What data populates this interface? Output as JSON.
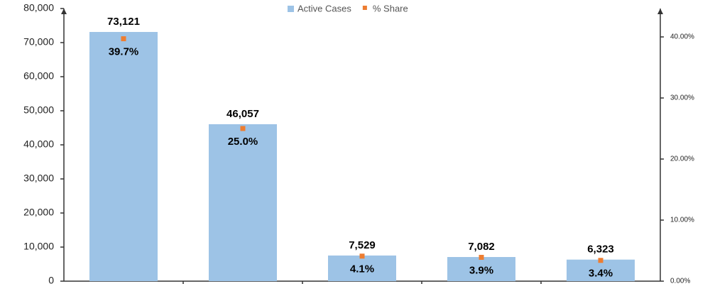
{
  "chart_data": {
    "type": "bar",
    "categories": [
      null,
      null,
      null,
      null,
      null
    ],
    "series": [
      {
        "name": "Active Cases",
        "color": "#9dc3e6",
        "values": [
          73121,
          46057,
          7529,
          7082,
          6323
        ],
        "value_labels": [
          "73,121",
          "46,057",
          "7,529",
          "7,082",
          "6,323"
        ]
      },
      {
        "name": "% Share",
        "color": "#ed7d31",
        "type": "scatter",
        "axis": "y2",
        "values": [
          39.7,
          25.0,
          4.1,
          3.9,
          3.4
        ],
        "value_labels": [
          "39.7%",
          "25.0%",
          "4.1%",
          "3.9%",
          "3.4%"
        ]
      }
    ],
    "ylim": [
      0,
      80000
    ],
    "yticks": [
      {
        "value": 0,
        "label": "0"
      },
      {
        "value": 10000,
        "label": "10,000"
      },
      {
        "value": 20000,
        "label": "20,000"
      },
      {
        "value": 30000,
        "label": "30,000"
      },
      {
        "value": 40000,
        "label": "40,000"
      },
      {
        "value": 50000,
        "label": "50,000"
      },
      {
        "value": 60000,
        "label": "60,000"
      },
      {
        "value": 70000,
        "label": "70,000"
      },
      {
        "value": 80000,
        "label": "80,000"
      }
    ],
    "y2lim": [
      0,
      44.65
    ],
    "y2ticks": [
      {
        "value": 0,
        "label": "0.00%"
      },
      {
        "value": 10,
        "label": "10.00%"
      },
      {
        "value": 20,
        "label": "20.00%"
      },
      {
        "value": 30,
        "label": "30.00%"
      },
      {
        "value": 40,
        "label": "40.00%"
      }
    ],
    "legend": "top"
  }
}
